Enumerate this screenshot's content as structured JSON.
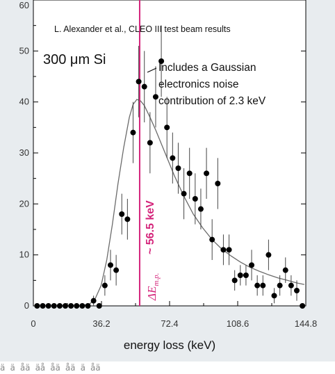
{
  "chart_data": {
    "type": "scatter",
    "title": "L. Alexander et al., CLEO III test beam results",
    "xlabel": "energy loss (keV)",
    "ylabel": "",
    "xlim": [
      0,
      144.8
    ],
    "ylim": [
      0,
      60
    ],
    "x_ticks": [
      0,
      36.2,
      72.4,
      108.6,
      144.8
    ],
    "x_tick_labels": [
      "0",
      "36.2",
      "72.4",
      "108.6",
      "144.8"
    ],
    "y_ticks": [
      0,
      10,
      20,
      30,
      40,
      50,
      60
    ],
    "y_tick_labels": [
      "0",
      "10",
      "20",
      "30",
      "40",
      "50",
      "60"
    ],
    "annotations": {
      "material": "300 μm Si",
      "noise_line1": "Includes a Gaussian",
      "noise_line2": "electronics noise",
      "noise_line3": "contribution of 2.3 keV",
      "delta_e": "ΔE",
      "delta_sub": "m.p.",
      "delta_value": "~ 56.5 keV"
    },
    "most_probable_x": 56.5,
    "colors": {
      "marker": "#000000",
      "fit": "#6b6b6b",
      "mp_line": "#d4237a",
      "material_text": "#3b2fa0"
    },
    "series": [
      {
        "kind": "data",
        "x": [
          2,
          5,
          8,
          11,
          14,
          17,
          20,
          23,
          26,
          29,
          32,
          35,
          38,
          41,
          44,
          47,
          50,
          53,
          56,
          59,
          62,
          65,
          68,
          71,
          74,
          77,
          80,
          83,
          86,
          89,
          92,
          95,
          98,
          101,
          104,
          107,
          110,
          113,
          116,
          119,
          122,
          125,
          128,
          131,
          134,
          137,
          140,
          143
        ],
        "y": [
          0,
          0,
          0,
          0,
          0,
          0,
          0,
          0,
          0,
          0,
          1,
          0,
          4,
          8,
          7,
          18,
          17,
          34,
          44,
          43,
          32,
          41,
          48,
          35,
          29,
          27,
          22,
          26,
          21,
          19,
          26,
          13,
          24,
          11,
          11,
          5,
          6,
          6,
          8,
          4,
          4,
          10,
          2,
          4,
          7,
          4,
          3,
          0
        ],
        "err": [
          0,
          0,
          0,
          0,
          0,
          0,
          0,
          0,
          0,
          0,
          1,
          0,
          2,
          3,
          3,
          4,
          4,
          6,
          7,
          7,
          6,
          6,
          7,
          6,
          5,
          5,
          5,
          5,
          5,
          4,
          5,
          4,
          5,
          3,
          3,
          2,
          2,
          2,
          3,
          2,
          2,
          3,
          1.5,
          2,
          2.5,
          2,
          2,
          0
        ]
      },
      {
        "kind": "fit",
        "x": [
          25,
          30,
          33,
          36,
          39,
          42,
          45,
          48,
          51,
          53,
          55,
          57,
          59,
          62,
          65,
          70,
          75,
          80,
          85,
          90,
          95,
          100,
          105,
          110,
          115,
          120,
          125,
          130,
          135,
          140,
          144
        ],
        "y": [
          0,
          0.4,
          1.5,
          4,
          9,
          16,
          24,
          31,
          37,
          39.5,
          40.5,
          40.2,
          39.3,
          37,
          34.5,
          30,
          25.5,
          21.5,
          18,
          15.3,
          13,
          11.2,
          9.8,
          8.6,
          7.6,
          6.8,
          6.1,
          5.5,
          5,
          4.5,
          4.2
        ]
      }
    ],
    "footer_strip": "ä ä åä äå åä åä ä åä"
  }
}
